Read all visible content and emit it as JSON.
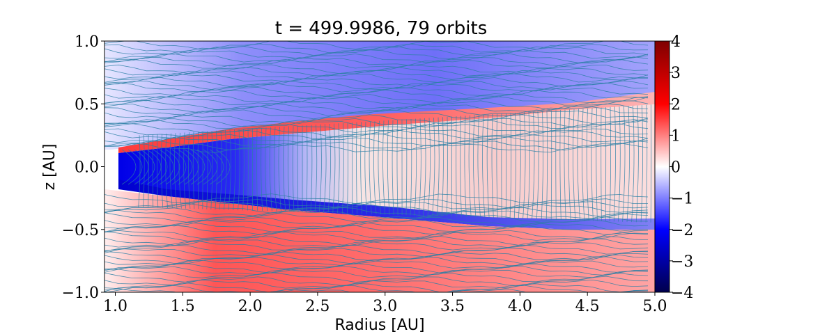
{
  "chart_data": {
    "type": "heatmap",
    "title": "t = 499.9986, 79 orbits",
    "xlabel": "Radius [AU]",
    "ylabel": "z [AU]",
    "xlim": [
      0.92,
      5.0
    ],
    "ylim": [
      -1.0,
      1.0
    ],
    "x_ticks": [
      1.0,
      1.5,
      2.0,
      2.5,
      3.0,
      3.5,
      4.0,
      4.5,
      5.0
    ],
    "x_tick_labels": [
      "1.0",
      "1.5",
      "2.0",
      "2.5",
      "3.0",
      "3.5",
      "4.0",
      "4.5",
      "5.0"
    ],
    "y_ticks": [
      1.0,
      0.5,
      0.0,
      -0.5,
      -1.0
    ],
    "y_tick_labels": [
      "1.0",
      "0.5",
      "0.0",
      "−0.5",
      "−1.0"
    ],
    "colorbar": {
      "colormap": "seismic",
      "range": [
        -4,
        4
      ],
      "ticks": [
        4,
        3,
        2,
        1,
        0,
        -1,
        -2,
        -3,
        -4
      ],
      "tick_labels": [
        "4",
        "3",
        "2",
        "1",
        "0",
        "−1",
        "−2",
        "−3",
        "−4"
      ]
    },
    "overlay": "streamlines",
    "streamline_color": "#2a7fa5",
    "regions": [
      {
        "name": "upper atmosphere",
        "z_range": [
          0.35,
          1.0
        ],
        "sign": "negative",
        "approx_value": -1.2
      },
      {
        "name": "upper disk surface",
        "z_range": [
          0.2,
          0.35
        ],
        "sign": "positive",
        "approx_value": 1.8
      },
      {
        "name": "inner midplane (R<2.5)",
        "z_range": [
          -0.25,
          0.2
        ],
        "sign": "negative",
        "approx_value": -2.5
      },
      {
        "name": "outer midplane",
        "z_range": [
          -0.25,
          0.2
        ],
        "sign": "positive",
        "approx_value": 0.4
      },
      {
        "name": "lower disk surface",
        "z_range": [
          -0.35,
          -0.25
        ],
        "sign": "negative",
        "approx_value": -2.0
      },
      {
        "name": "lower atmosphere",
        "z_range": [
          -1.0,
          -0.35
        ],
        "sign": "positive",
        "approx_value": 1.5
      }
    ]
  }
}
